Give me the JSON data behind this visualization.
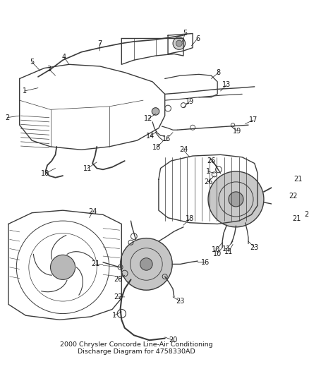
{
  "title_line1": "2000 Chrysler Concorde Line-Air Conditioning",
  "title_line2": "Discharge Diagram for 4758330AD",
  "background_color": "#ffffff",
  "diagram_color": "#3a3a3a",
  "text_color": "#1a1a1a",
  "label_fontsize": 7.0,
  "title_fontsize": 6.8,
  "figsize": [
    4.38,
    5.33
  ],
  "dpi": 100
}
